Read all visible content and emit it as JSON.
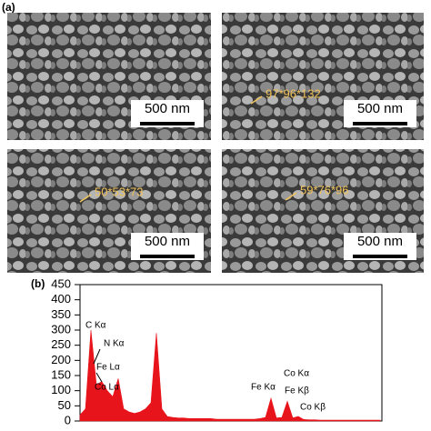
{
  "figure_labels": [
    "(a)",
    "(b)"
  ],
  "sem_images": [
    {
      "scale_bar": "500 nm"
    },
    {
      "scale_bar": "500 nm",
      "annotation": "97*96*132"
    },
    {
      "scale_bar": "500 nm",
      "annotation": "50*53*73"
    },
    {
      "scale_bar": "500 nm",
      "annotation": "59*76*96"
    }
  ],
  "chart_data": {
    "type": "area",
    "color": "#e8141b",
    "categories": [
      null,
      null,
      null,
      null,
      null,
      null,
      null,
      null,
      null,
      null,
      null,
      null,
      null,
      null,
      null,
      null,
      null,
      null,
      null,
      null,
      null,
      null,
      null,
      null,
      null,
      null,
      null,
      null,
      null,
      null,
      null,
      null,
      null,
      null,
      null,
      null,
      null,
      null,
      null,
      null,
      null,
      null,
      null,
      null,
      null,
      null,
      null,
      null,
      null,
      null,
      null,
      null,
      null,
      null,
      null,
      null
    ],
    "values": [
      20,
      40,
      300,
      120,
      130,
      100,
      80,
      140,
      40,
      30,
      25,
      30,
      40,
      60,
      290,
      40,
      15,
      12,
      10,
      10,
      8,
      8,
      8,
      8,
      8,
      6,
      6,
      6,
      6,
      6,
      6,
      6,
      6,
      8,
      12,
      75,
      10,
      12,
      65,
      10,
      15,
      5,
      4,
      4,
      3,
      3,
      3,
      3,
      3,
      3,
      3,
      3,
      3,
      3,
      3,
      3
    ],
    "ylim": [
      0,
      450
    ],
    "yticks": [
      0,
      50,
      100,
      150,
      200,
      250,
      300,
      350,
      400,
      450
    ],
    "annotations": [
      "C Kα",
      "N Kα",
      "Fe Lα",
      "Co Lα",
      "Fe Kα",
      "Co Kα",
      "Fe Kβ",
      "Co Kβ"
    ]
  }
}
